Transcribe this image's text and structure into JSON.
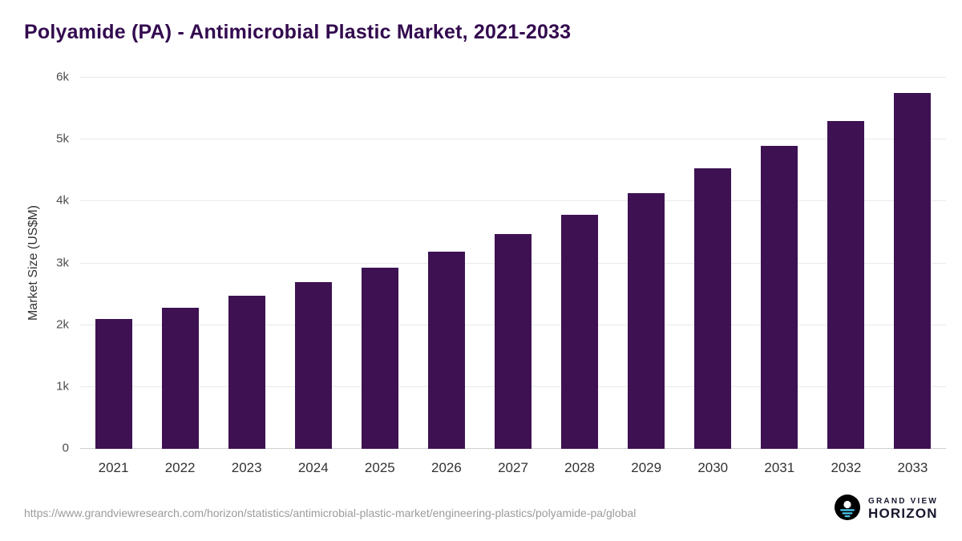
{
  "title": "Polyamide (PA) - Antimicrobial Plastic Market, 2021-2033",
  "source_url": "https://www.grandviewresearch.com/horizon/statistics/antimicrobial-plastic-market/engineering-plastics/polyamide-pa/global",
  "logo": {
    "top": "GRAND VIEW",
    "bottom": "HORIZON"
  },
  "colors": {
    "bar": "#3d1152",
    "title": "#330a4f",
    "gridline": "#e9e9e9",
    "axis_text": "#4d4d4d"
  },
  "chart_data": {
    "type": "bar",
    "title": "Polyamide (PA) - Antimicrobial Plastic Market, 2021-2033",
    "xlabel": "",
    "ylabel": "Market Size (US$M)",
    "categories": [
      "2021",
      "2022",
      "2023",
      "2024",
      "2025",
      "2026",
      "2027",
      "2028",
      "2029",
      "2030",
      "2031",
      "2032",
      "2033"
    ],
    "values": [
      2100,
      2280,
      2480,
      2690,
      2930,
      3190,
      3470,
      3790,
      4140,
      4530,
      4900,
      5300,
      5750
    ],
    "ylim": [
      0,
      6000
    ],
    "yticks": [
      {
        "value": 0,
        "label": "0"
      },
      {
        "value": 1000,
        "label": "1k"
      },
      {
        "value": 2000,
        "label": "2k"
      },
      {
        "value": 3000,
        "label": "3k"
      },
      {
        "value": 4000,
        "label": "4k"
      },
      {
        "value": 5000,
        "label": "5k"
      },
      {
        "value": 6000,
        "label": "6k"
      }
    ],
    "grid": "horizontal",
    "legend": "none",
    "bar_color": "#3d1152"
  }
}
